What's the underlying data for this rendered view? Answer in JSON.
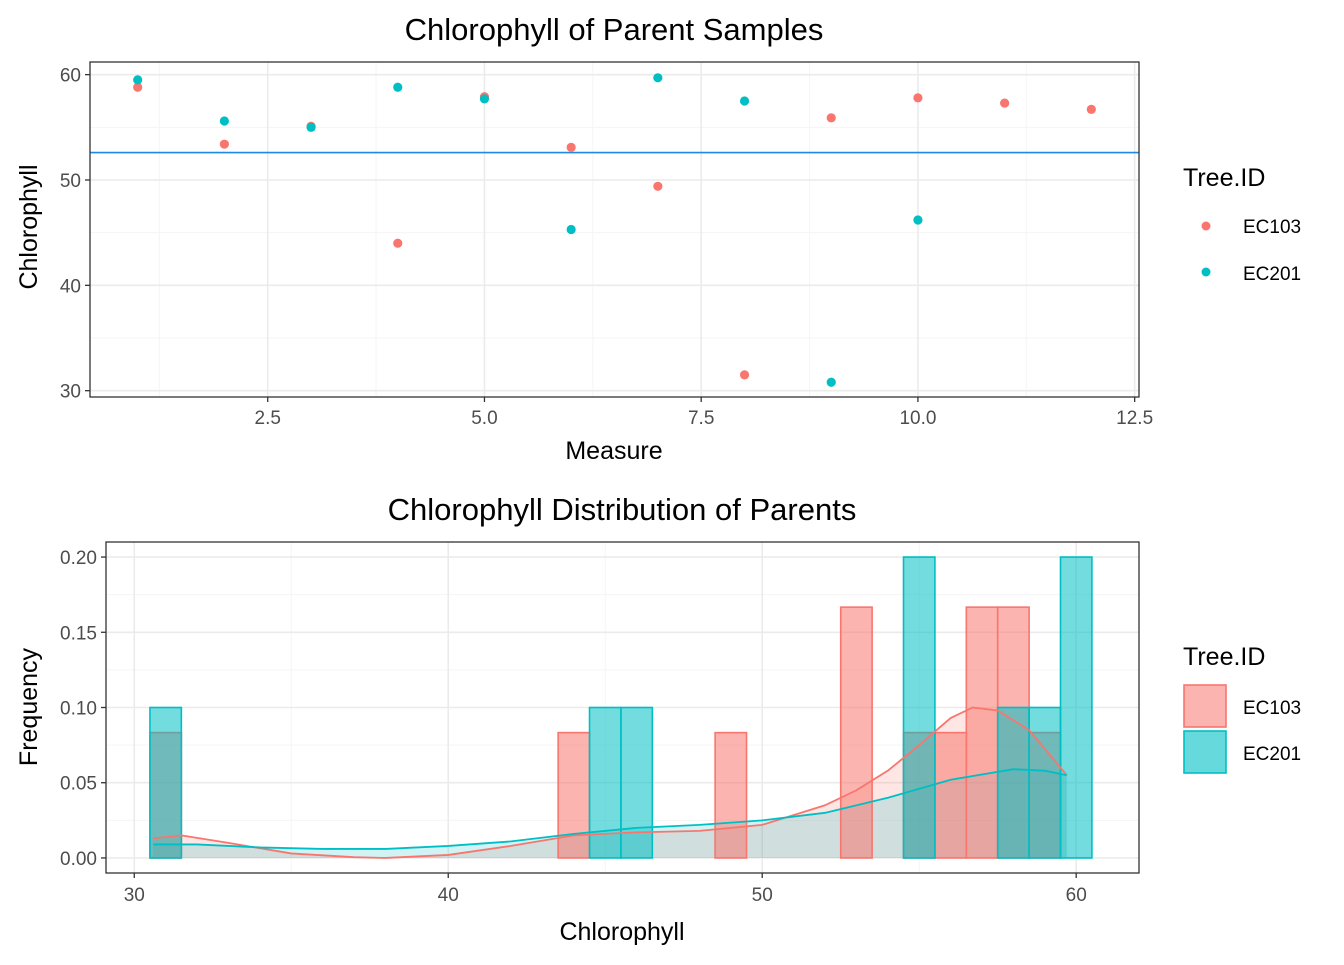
{
  "colors": {
    "EC103": "#F8766D",
    "EC201": "#00BFC4",
    "hline": "#1E88E5",
    "grid_major": "#EBEBEB",
    "grid_minor": "#F5F5F5",
    "panel_border": "#333333"
  },
  "chart_data": [
    {
      "type": "scatter",
      "title": "Chlorophyll of Parent Samples",
      "xlabel": "Measure",
      "ylabel": "Chlorophyll",
      "xlim": [
        0.45,
        12.55
      ],
      "ylim": [
        29.4,
        61.2
      ],
      "x_ticks": [
        2.5,
        5.0,
        7.5,
        10.0,
        12.5
      ],
      "x_tick_labels": [
        "2.5",
        "5.0",
        "7.5",
        "10.0",
        "12.5"
      ],
      "y_ticks": [
        30,
        40,
        50,
        60
      ],
      "y_tick_labels": [
        "30",
        "40",
        "50",
        "60"
      ],
      "hline": 52.6,
      "grid": true,
      "legend": {
        "title": "Tree.ID",
        "placement": "right",
        "entries": [
          "EC103",
          "EC201"
        ]
      },
      "series": [
        {
          "name": "EC103",
          "x": [
            1,
            2,
            3,
            4,
            5,
            6,
            7,
            8,
            9,
            10,
            11,
            12
          ],
          "y": [
            58.8,
            53.4,
            55.1,
            44.0,
            57.9,
            53.1,
            49.4,
            31.5,
            55.9,
            57.8,
            57.3,
            56.7
          ]
        },
        {
          "name": "EC201",
          "x": [
            1,
            2,
            3,
            4,
            5,
            6,
            7,
            8,
            9,
            10
          ],
          "y": [
            59.5,
            55.6,
            55.0,
            58.8,
            57.7,
            45.3,
            59.7,
            57.5,
            30.8,
            46.2
          ]
        }
      ]
    },
    {
      "type": "bar",
      "title": "Chlorophyll Distribution of Parents",
      "xlabel": "Chlorophyll",
      "ylabel": "Frequency",
      "xlim": [
        29.1,
        62.0
      ],
      "ylim": [
        -0.01,
        0.21
      ],
      "x_ticks": [
        30,
        40,
        50,
        60
      ],
      "x_tick_labels": [
        "30",
        "40",
        "50",
        "60"
      ],
      "y_ticks": [
        0.0,
        0.05,
        0.1,
        0.15,
        0.2
      ],
      "y_tick_labels": [
        "0.00",
        "0.05",
        "0.10",
        "0.15",
        "0.20"
      ],
      "bin_width": 1,
      "grid": true,
      "legend": {
        "title": "Tree.ID",
        "placement": "right",
        "entries": [
          "EC103",
          "EC201"
        ]
      },
      "series": [
        {
          "name": "EC103",
          "bins": [
            {
              "x": 31,
              "value": 0.0833
            },
            {
              "x": 44,
              "value": 0.0833
            },
            {
              "x": 49,
              "value": 0.0833
            },
            {
              "x": 53,
              "value": 0.1667
            },
            {
              "x": 55,
              "value": 0.0833
            },
            {
              "x": 56,
              "value": 0.0833
            },
            {
              "x": 57,
              "value": 0.1667
            },
            {
              "x": 58,
              "value": 0.1667
            },
            {
              "x": 59,
              "value": 0.0833
            }
          ],
          "density": [
            [
              30.6,
              0.013
            ],
            [
              31.5,
              0.015
            ],
            [
              33,
              0.01
            ],
            [
              35,
              0.003
            ],
            [
              37,
              0.0005
            ],
            [
              38,
              0.0
            ],
            [
              40,
              0.002
            ],
            [
              42,
              0.008
            ],
            [
              44,
              0.015
            ],
            [
              46,
              0.017
            ],
            [
              48,
              0.018
            ],
            [
              50,
              0.022
            ],
            [
              52,
              0.035
            ],
            [
              53,
              0.045
            ],
            [
              54,
              0.058
            ],
            [
              55,
              0.075
            ],
            [
              56,
              0.093
            ],
            [
              56.7,
              0.1
            ],
            [
              57.5,
              0.098
            ],
            [
              58.5,
              0.085
            ],
            [
              59.7,
              0.055
            ]
          ]
        },
        {
          "name": "EC201",
          "bins": [
            {
              "x": 31,
              "value": 0.1
            },
            {
              "x": 45,
              "value": 0.1
            },
            {
              "x": 46,
              "value": 0.1
            },
            {
              "x": 55,
              "value": 0.2
            },
            {
              "x": 58,
              "value": 0.1
            },
            {
              "x": 59,
              "value": 0.1
            },
            {
              "x": 60,
              "value": 0.2
            }
          ],
          "density": [
            [
              30.6,
              0.009
            ],
            [
              32,
              0.009
            ],
            [
              34,
              0.007
            ],
            [
              36,
              0.006
            ],
            [
              38,
              0.006
            ],
            [
              40,
              0.008
            ],
            [
              42,
              0.011
            ],
            [
              44,
              0.016
            ],
            [
              46,
              0.02
            ],
            [
              48,
              0.022
            ],
            [
              50,
              0.025
            ],
            [
              52,
              0.03
            ],
            [
              54,
              0.04
            ],
            [
              56,
              0.052
            ],
            [
              58,
              0.059
            ],
            [
              59,
              0.058
            ],
            [
              59.7,
              0.055
            ]
          ]
        }
      ]
    }
  ]
}
